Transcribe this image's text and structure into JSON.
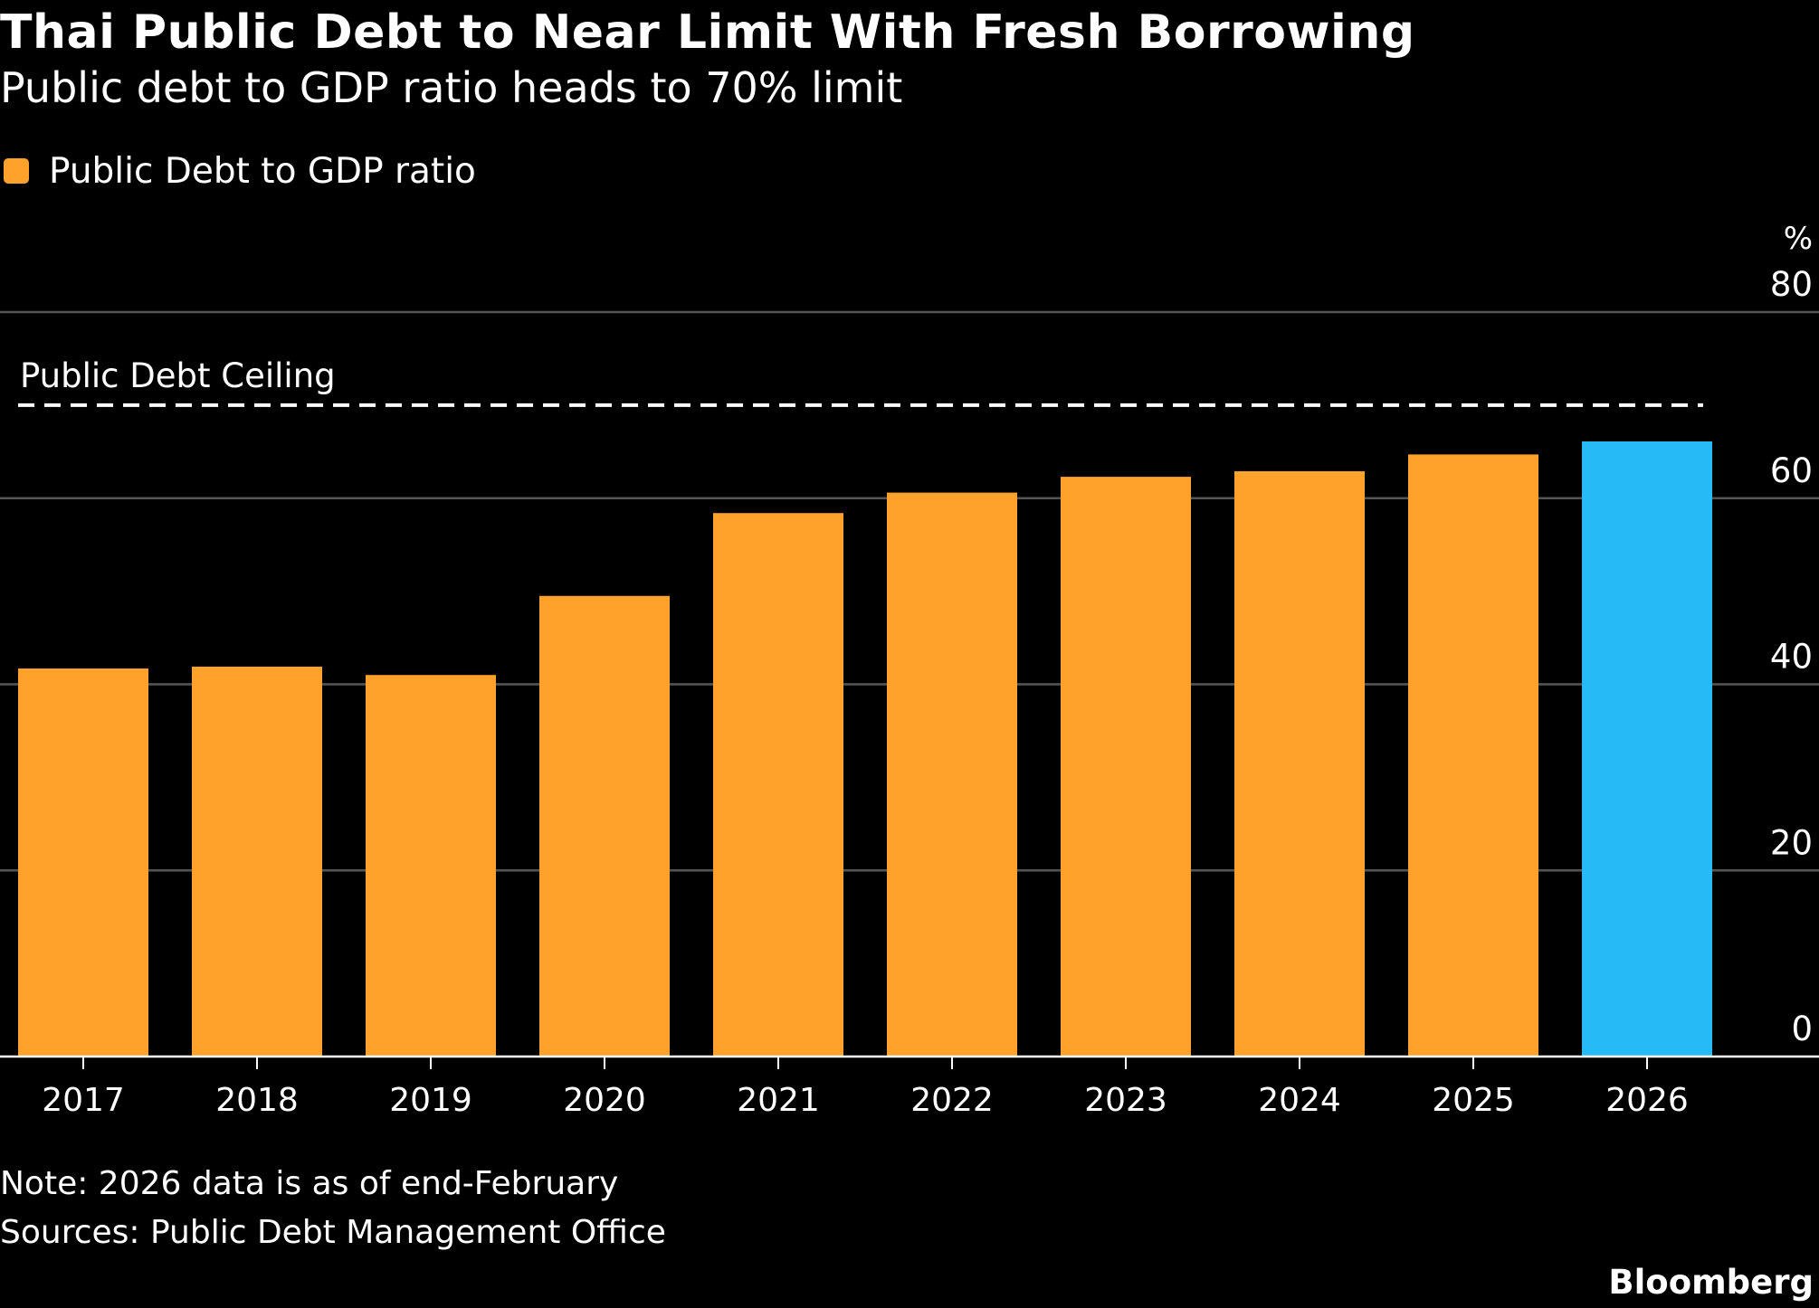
{
  "title": "Thai Public Debt to Near Limit With Fresh Borrowing",
  "subtitle": "Public debt to GDP ratio heads to 70% limit",
  "note": "Note: 2026 data is as of end-February",
  "sources": "Sources: Public Debt Management Office",
  "brand": "Bloomberg",
  "colors": {
    "background": "#000000",
    "bar": "#FFA22B",
    "highlight_bar": "#26BAF7",
    "grid": "#555555",
    "axis": "#ffffff",
    "text": "#ffffff"
  },
  "chart_data": {
    "type": "bar",
    "categories": [
      "2017",
      "2018",
      "2019",
      "2020",
      "2021",
      "2022",
      "2023",
      "2024",
      "2025",
      "2026"
    ],
    "series": [
      {
        "name": "Public Debt to GDP ratio",
        "values": [
          41.7,
          41.9,
          41.0,
          49.5,
          58.4,
          60.6,
          62.3,
          62.9,
          64.7,
          66.1
        ]
      }
    ],
    "highlight_category": "2026",
    "ylim": [
      0,
      80
    ],
    "yticks": [
      0,
      20,
      40,
      60,
      80
    ],
    "yunit": "%",
    "y_axis_side": "right",
    "grid": true,
    "legend_position": "top-left",
    "reference_line": {
      "label": "Public Debt Ceiling",
      "value": 70,
      "style": "dashed"
    }
  }
}
